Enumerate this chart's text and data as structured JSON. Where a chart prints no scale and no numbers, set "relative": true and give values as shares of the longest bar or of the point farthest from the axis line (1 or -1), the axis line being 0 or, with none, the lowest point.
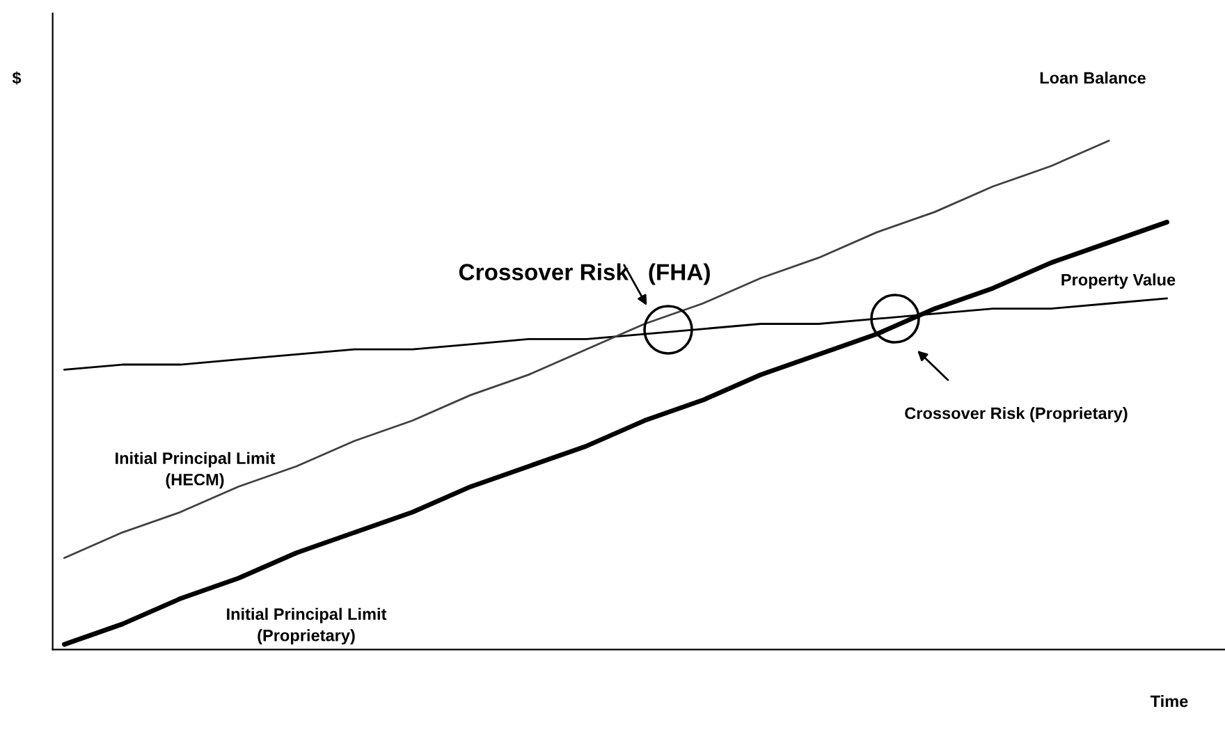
{
  "chart_data": {
    "type": "line",
    "relative": true,
    "xlabel": "Time",
    "ylabel": "$",
    "categories": [
      null,
      null,
      null,
      null,
      null,
      null,
      null,
      null,
      null,
      null,
      null,
      null,
      null,
      null,
      null,
      null,
      null,
      null,
      null,
      null
    ],
    "series": [
      {
        "name": "Property Value",
        "color": "#000000",
        "values": [
          0.55,
          0.56,
          0.56,
          0.57,
          0.58,
          0.59,
          0.59,
          0.6,
          0.61,
          0.61,
          0.62,
          0.63,
          0.64,
          0.64,
          0.65,
          0.66,
          0.67,
          0.67,
          0.68,
          0.69
        ]
      },
      {
        "color": "#404040",
        "values": [
          0.18,
          0.23,
          0.27,
          0.32,
          0.36,
          0.41,
          0.45,
          0.5,
          0.54,
          0.59,
          0.64,
          0.68,
          0.73,
          0.77,
          0.82,
          0.86,
          0.91,
          0.95,
          1.0,
          null
        ]
      },
      {
        "color": "#000000",
        "values": [
          0.01,
          0.05,
          0.1,
          0.14,
          0.19,
          0.23,
          0.27,
          0.32,
          0.36,
          0.4,
          0.45,
          0.49,
          0.54,
          0.58,
          0.62,
          0.67,
          0.71,
          0.76,
          0.8,
          0.84
        ]
      }
    ],
    "annotations": [
      "Loan Balance",
      "Initial Principal Limit\n(HECM)",
      "Initial Principal Limit\n(Proprietary)",
      "Crossover Risk   (FHA)",
      "Crossover Risk (Proprietary)"
    ],
    "legend": false,
    "marker": "none",
    "line_style": "solid"
  }
}
